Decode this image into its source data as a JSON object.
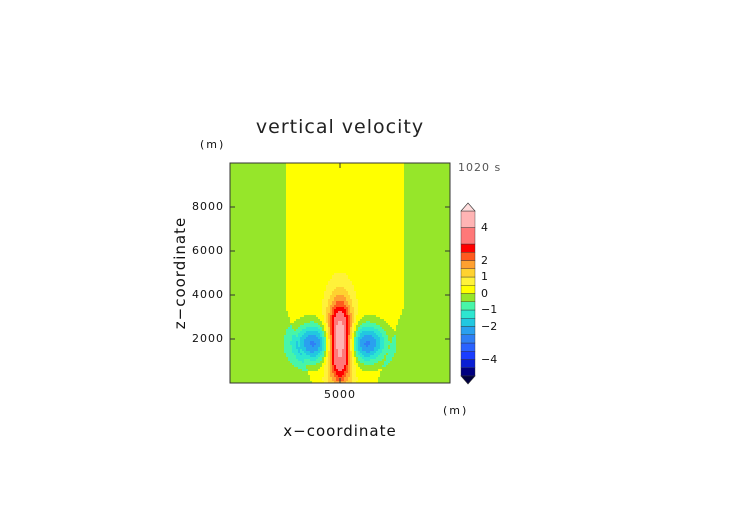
{
  "chart_data": {
    "type": "heatmap",
    "title": "vertical velocity",
    "time_label": "1020 s",
    "xlabel": "x−coordinate",
    "ylabel": "z−coordinate",
    "x_unit": "(m)",
    "y_unit": "(m)",
    "xlim": [
      0,
      10000
    ],
    "ylim": [
      0,
      10000
    ],
    "xticks": [
      5000
    ],
    "yticks": [
      2000,
      4000,
      6000,
      8000
    ],
    "colorbar": {
      "levels": [
        -5,
        -4.5,
        -4,
        -3.5,
        -3,
        -2.5,
        -2,
        -1.5,
        -1,
        -0.5,
        0,
        0.5,
        1,
        1.5,
        2,
        2.5,
        3,
        4,
        5
      ],
      "tick_labels": [
        "4",
        "2",
        "1",
        "0",
        "−1",
        "−2",
        "−4"
      ],
      "tick_values": [
        4,
        2,
        1,
        0,
        -1,
        -2,
        -4
      ],
      "colors": [
        "#000080",
        "#0a1fd4",
        "#1a3dff",
        "#2a62ff",
        "#2f7ff5",
        "#2aa0ef",
        "#22c8e0",
        "#2ee6d0",
        "#48f5a8",
        "#96e62a",
        "#ffff00",
        "#fff23a",
        "#ffd230",
        "#ffa030",
        "#ff5a1e",
        "#ff0000",
        "#ff7878",
        "#ffb4b4"
      ],
      "extend": "both"
    },
    "features": [
      {
        "kind": "background",
        "value": -0.2
      },
      {
        "kind": "plume",
        "value": 0.3,
        "x_range": [
          2500,
          7900
        ],
        "z_range": [
          0,
          10000
        ]
      },
      {
        "kind": "updraft",
        "center_x": 5000,
        "center_z": 1900,
        "peak": 5.2,
        "half_width_x": 700,
        "half_height_z": 2200
      },
      {
        "kind": "downdraft",
        "center_x": 3800,
        "center_z": 1800,
        "peak": -2.9,
        "half_width_x": 1150,
        "half_height_z": 1100
      },
      {
        "kind": "downdraft",
        "center_x": 6200,
        "center_z": 1800,
        "peak": -2.9,
        "half_width_x": 1150,
        "half_height_z": 1100
      }
    ]
  }
}
